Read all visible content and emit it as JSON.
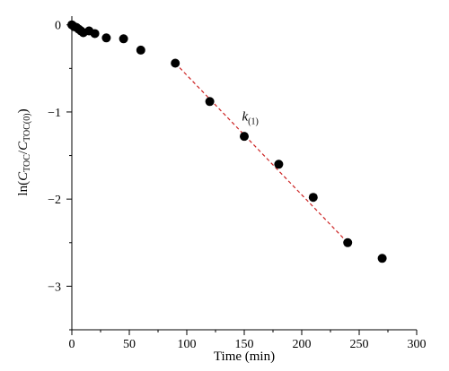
{
  "chart_data": {
    "type": "scatter",
    "xlabel": "Time (min)",
    "ylabel": {
      "prefix": "ln(",
      "num_var": "C",
      "num_sub": "TOC",
      "slash": "/",
      "den_var": "C",
      "den_sub": "TOC(0)",
      "suffix": ")"
    },
    "xlim": [
      0,
      300
    ],
    "ylim": [
      -3.5,
      0.1
    ],
    "x_ticks": [
      0,
      50,
      100,
      150,
      200,
      250,
      300
    ],
    "x_tick_labels": [
      "0",
      "50",
      "100",
      "150",
      "200",
      "250",
      "300"
    ],
    "y_ticks": [
      0,
      -1,
      -2,
      -3
    ],
    "y_tick_labels": [
      "0",
      "−1",
      "−2",
      "−3"
    ],
    "grid": false,
    "marker_color": "#000000",
    "series": [
      {
        "x": [
          0,
          2,
          4,
          6,
          8,
          10,
          15,
          20,
          30,
          45,
          60,
          90,
          120,
          150,
          180,
          210,
          240,
          270
        ],
        "y": [
          0.0,
          -0.02,
          -0.03,
          -0.05,
          -0.07,
          -0.09,
          -0.07,
          -0.1,
          -0.15,
          -0.16,
          -0.29,
          -0.44,
          -0.88,
          -1.28,
          -1.6,
          -1.98,
          -2.5,
          -2.68
        ]
      }
    ],
    "fit_line": {
      "x": [
        90,
        240
      ],
      "y": [
        -0.44,
        -2.5
      ],
      "color": "#cc2222",
      "style": "dashed"
    },
    "annotation": {
      "var": "k",
      "sub": "(1)",
      "x": 148,
      "y": -1.1
    }
  }
}
